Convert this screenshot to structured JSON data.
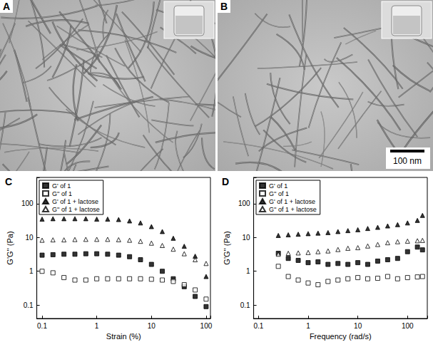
{
  "images": [
    {
      "label": "A"
    },
    {
      "label": "B",
      "scale_bar": "100 nm"
    }
  ],
  "chart_data": [
    {
      "type": "scatter",
      "title": "C",
      "x_label": "Strain (%)",
      "y_label": "G'G'' (Pa)",
      "log": true,
      "grid": false,
      "legend": "upper left",
      "xlim": [
        0.08,
        120
      ],
      "ylim": [
        0.04,
        600
      ],
      "xticks": [
        0.1,
        1,
        10,
        100
      ],
      "yticks": [
        0.1,
        1,
        10,
        100
      ],
      "x": [
        0.1,
        0.158,
        0.251,
        0.398,
        0.631,
        1,
        1.58,
        2.51,
        3.98,
        6.31,
        10,
        15.8,
        25.1,
        39.8,
        63.1,
        100
      ],
      "series": [
        {
          "name": "G' of 1",
          "color": "#000000",
          "marker": "square",
          "values": [
            3.0,
            3.1,
            3.2,
            3.2,
            3.3,
            3.3,
            3.2,
            3.0,
            2.7,
            2.2,
            1.6,
            1.0,
            0.6,
            0.35,
            0.18,
            0.09
          ]
        },
        {
          "name": "G'' of 1",
          "color": "#000000",
          "marker": "open_square",
          "values": [
            1.0,
            0.9,
            0.65,
            0.55,
            0.55,
            0.6,
            0.6,
            0.6,
            0.6,
            0.6,
            0.58,
            0.55,
            0.5,
            0.4,
            0.28,
            0.15
          ]
        },
        {
          "name": "G' of 1 + lactose",
          "color": "#000000",
          "marker": "triangle",
          "values": [
            35,
            36,
            36,
            36,
            36,
            35,
            35,
            34,
            31,
            27,
            21,
            15,
            9.5,
            5.5,
            2.8,
            0.7
          ]
        },
        {
          "name": "G'' of 1 + lactose",
          "color": "#000000",
          "marker": "open_triangle",
          "values": [
            8.3,
            8.5,
            8.5,
            8.7,
            8.8,
            8.8,
            8.8,
            8.6,
            8.3,
            7.7,
            6.8,
            5.8,
            4.5,
            3.3,
            2.2,
            1.7
          ]
        }
      ]
    },
    {
      "type": "scatter",
      "title": "D",
      "x_label": "Frequency (rad/s)",
      "y_label": "G'G'' (Pa)",
      "log": true,
      "grid": false,
      "legend": "upper left",
      "xlim": [
        0.08,
        250
      ],
      "ylim": [
        0.04,
        600
      ],
      "xticks": [
        0.1,
        1,
        10,
        100
      ],
      "yticks": [
        0.1,
        1,
        10,
        100
      ],
      "x": [
        0.251,
        0.398,
        0.631,
        1,
        1.58,
        2.51,
        3.98,
        6.31,
        10,
        15.8,
        25.1,
        39.8,
        63.1,
        100,
        158,
        200
      ],
      "series": [
        {
          "name": "G' of 1",
          "color": "#000000",
          "marker": "square",
          "values": [
            3.4,
            2.4,
            2.1,
            1.8,
            1.9,
            1.6,
            1.7,
            1.6,
            1.8,
            1.6,
            2.0,
            2.2,
            2.4,
            3.8,
            5.2,
            4.3
          ]
        },
        {
          "name": "G'' of 1",
          "color": "#000000",
          "marker": "open_square",
          "values": [
            1.4,
            0.7,
            0.55,
            0.45,
            0.4,
            0.5,
            0.55,
            0.6,
            0.65,
            0.6,
            0.62,
            0.7,
            0.6,
            0.65,
            0.68,
            0.7
          ]
        },
        {
          "name": "G' of 1 + lactose",
          "color": "#000000",
          "marker": "triangle",
          "values": [
            11.5,
            12,
            12.5,
            13,
            13.5,
            14,
            15,
            16,
            17,
            18.5,
            20,
            22,
            24,
            27,
            32,
            45
          ]
        },
        {
          "name": "G'' of 1 + lactose",
          "color": "#000000",
          "marker": "open_triangle",
          "values": [
            3.2,
            3.4,
            3.5,
            3.6,
            3.8,
            4.0,
            4.4,
            4.8,
            5.0,
            5.6,
            6.2,
            7.0,
            7.5,
            7.8,
            8.0,
            8.2
          ]
        }
      ]
    }
  ]
}
